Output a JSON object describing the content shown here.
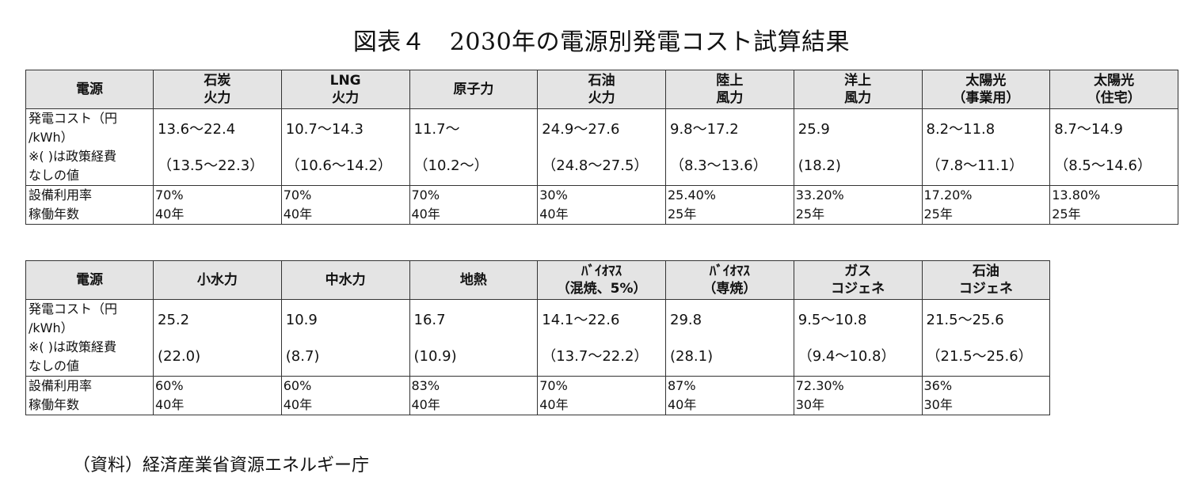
{
  "title": "図表４　2030年の電源別発電コスト試算結果",
  "row_labels": {
    "source": "電源",
    "cost_line1": "発電コスト（円",
    "cost_line2": "/kWh）",
    "cost_line3": "※( )は政策経費",
    "cost_line4": "なしの値",
    "util_line1": "設備利用率",
    "util_line2": "稼働年数"
  },
  "table1": [
    {
      "h1": "石炭",
      "h2": "火力",
      "cost": "13.6～22.4",
      "cost_no_policy": "（13.5～22.3）",
      "utilization": "70%",
      "years": "40年"
    },
    {
      "h1": "LNG",
      "h2": "火力",
      "cost": "10.7～14.3",
      "cost_no_policy": "（10.6～14.2）",
      "utilization": "70%",
      "years": "40年"
    },
    {
      "h1": "原子力",
      "h2": "",
      "cost": "11.7～",
      "cost_no_policy": "（10.2～）",
      "utilization": "70%",
      "years": "40年"
    },
    {
      "h1": "石油",
      "h2": "火力",
      "cost": "24.9～27.6",
      "cost_no_policy": "（24.8～27.5）",
      "utilization": "30%",
      "years": "40年"
    },
    {
      "h1": "陸上",
      "h2": "風力",
      "cost": "9.8～17.2",
      "cost_no_policy": "（8.3～13.6）",
      "utilization": "25.40%",
      "years": "25年"
    },
    {
      "h1": "洋上",
      "h2": "風力",
      "cost": "25.9",
      "cost_no_policy": "(18.2)",
      "utilization": "33.20%",
      "years": "25年"
    },
    {
      "h1": "太陽光",
      "h2": "（事業用）",
      "cost": "8.2～11.8",
      "cost_no_policy": "（7.8～11.1）",
      "utilization": "17.20%",
      "years": "25年"
    },
    {
      "h1": "太陽光",
      "h2": "（住宅）",
      "cost": "8.7～14.9",
      "cost_no_policy": "（8.5～14.6）",
      "utilization": "13.80%",
      "years": "25年"
    }
  ],
  "table2": [
    {
      "h1": "小水力",
      "h2": "",
      "cost": "25.2",
      "cost_no_policy": "(22.0)",
      "utilization": "60%",
      "years": "40年"
    },
    {
      "h1": "中水力",
      "h2": "",
      "cost": "10.9",
      "cost_no_policy": "(8.7)",
      "utilization": "60%",
      "years": "40年"
    },
    {
      "h1": "地熱",
      "h2": "",
      "cost": "16.7",
      "cost_no_policy": "(10.9)",
      "utilization": "83%",
      "years": "40年"
    },
    {
      "h1": "ﾊﾞｲｵﾏｽ",
      "h2": "（混焼、5%）",
      "cost": "14.1～22.6",
      "cost_no_policy": "（13.7～22.2）",
      "utilization": "70%",
      "years": "40年"
    },
    {
      "h1": "ﾊﾞｲｵﾏｽ",
      "h2": "（専焼）",
      "cost": "29.8",
      "cost_no_policy": "(28.1)",
      "utilization": "87%",
      "years": "40年"
    },
    {
      "h1": "ガス",
      "h2": "コジェネ",
      "cost": "9.5～10.8",
      "cost_no_policy": "（9.4～10.8）",
      "utilization": "72.30%",
      "years": "30年"
    },
    {
      "h1": "石油",
      "h2": "コジェネ",
      "cost": "21.5～25.6",
      "cost_no_policy": "（21.5～25.6）",
      "utilization": "36%",
      "years": "30年"
    }
  ],
  "source_note": "（資料）経済産業省資源エネルギー庁"
}
